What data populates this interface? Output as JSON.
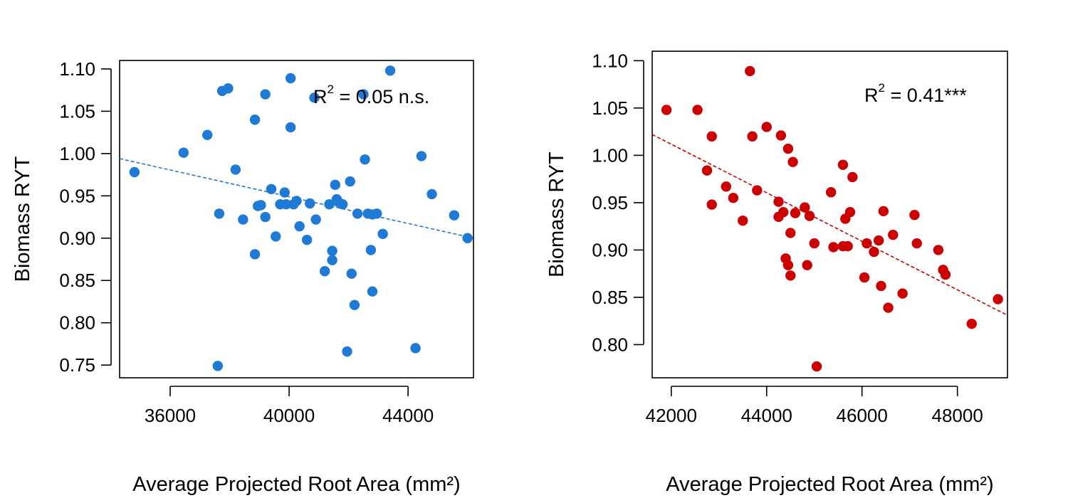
{
  "chart_data": [
    {
      "type": "scatter",
      "title": "",
      "xlabel": "Average Projected Root Area (mm²)",
      "ylabel": "Biomass RYT",
      "xlim": [
        34300,
        46200
      ],
      "ylim": [
        0.735,
        1.11
      ],
      "xticks": [
        36000,
        40000,
        44000
      ],
      "xtick_labels": [
        "36000",
        "40000",
        "44000"
      ],
      "yticks": [
        0.75,
        0.8,
        0.85,
        0.9,
        0.95,
        1.0,
        1.05,
        1.1
      ],
      "ytick_labels": [
        "0.75",
        "0.80",
        "0.85",
        "0.90",
        "0.95",
        "1.00",
        "1.05",
        "1.10"
      ],
      "color": "#1f7ad6",
      "annotation": {
        "base": "R",
        "sup": "2",
        "rest": " = 0.05 n.s."
      },
      "trend": {
        "x": [
          34300,
          46200
        ],
        "y": [
          0.994,
          0.9
        ]
      },
      "points": [
        [
          34800,
          0.978
        ],
        [
          36450,
          1.001
        ],
        [
          37250,
          1.022
        ],
        [
          37600,
          0.749
        ],
        [
          37650,
          0.929
        ],
        [
          37750,
          1.074
        ],
        [
          37950,
          1.077
        ],
        [
          38200,
          0.981
        ],
        [
          38450,
          0.922
        ],
        [
          38850,
          0.881
        ],
        [
          38850,
          1.04
        ],
        [
          38950,
          0.938
        ],
        [
          39050,
          0.939
        ],
        [
          39200,
          1.07
        ],
        [
          39200,
          0.925
        ],
        [
          39400,
          0.958
        ],
        [
          39550,
          0.902
        ],
        [
          39700,
          0.94
        ],
        [
          39850,
          0.954
        ],
        [
          39900,
          0.94
        ],
        [
          40050,
          1.089
        ],
        [
          40050,
          1.031
        ],
        [
          40150,
          0.94
        ],
        [
          40250,
          0.944
        ],
        [
          40350,
          0.914
        ],
        [
          40600,
          0.898
        ],
        [
          40700,
          0.941
        ],
        [
          40850,
          1.066
        ],
        [
          40900,
          0.922
        ],
        [
          41200,
          0.861
        ],
        [
          41350,
          0.94
        ],
        [
          41450,
          0.885
        ],
        [
          41450,
          0.874
        ],
        [
          41550,
          0.963
        ],
        [
          41600,
          0.946
        ],
        [
          41650,
          0.943
        ],
        [
          41800,
          0.94
        ],
        [
          41950,
          0.766
        ],
        [
          42050,
          0.967
        ],
        [
          42100,
          0.858
        ],
        [
          42200,
          0.821
        ],
        [
          42300,
          0.929
        ],
        [
          42500,
          1.07
        ],
        [
          42550,
          0.993
        ],
        [
          42650,
          0.929
        ],
        [
          42750,
          0.886
        ],
        [
          42800,
          0.928
        ],
        [
          42800,
          0.837
        ],
        [
          42950,
          0.929
        ],
        [
          43150,
          0.905
        ],
        [
          43400,
          1.098
        ],
        [
          44250,
          0.77
        ],
        [
          44450,
          0.997
        ],
        [
          44800,
          0.952
        ],
        [
          45550,
          0.927
        ],
        [
          46000,
          0.9
        ]
      ]
    },
    {
      "type": "scatter",
      "title": "",
      "xlabel": "Average Projected Root Area (mm²)",
      "ylabel": "Biomass RYT",
      "xlim": [
        41600,
        49050
      ],
      "ylim": [
        0.765,
        1.11
      ],
      "xticks": [
        42000,
        44000,
        46000,
        48000
      ],
      "xtick_labels": [
        "42000",
        "44000",
        "46000",
        "48000"
      ],
      "yticks": [
        0.8,
        0.85,
        0.9,
        0.95,
        1.0,
        1.05,
        1.1
      ],
      "ytick_labels": [
        "0.80",
        "0.85",
        "0.90",
        "0.95",
        "1.00",
        "1.05",
        "1.10"
      ],
      "color": "#cc0000",
      "annotation": {
        "base": "R",
        "sup": "2",
        "rest": " = 0.41***"
      },
      "trend": {
        "x": [
          41600,
          49050
        ],
        "y": [
          1.022,
          0.831
        ]
      },
      "points": [
        [
          41900,
          1.048
        ],
        [
          42550,
          1.048
        ],
        [
          42750,
          0.984
        ],
        [
          42850,
          1.02
        ],
        [
          42850,
          0.948
        ],
        [
          43150,
          0.967
        ],
        [
          43300,
          0.955
        ],
        [
          43500,
          0.931
        ],
        [
          43650,
          1.089
        ],
        [
          43700,
          1.02
        ],
        [
          43800,
          0.963
        ],
        [
          44000,
          1.03
        ],
        [
          44250,
          0.935
        ],
        [
          44250,
          0.951
        ],
        [
          44300,
          1.021
        ],
        [
          44350,
          0.94
        ],
        [
          44400,
          0.891
        ],
        [
          44450,
          0.884
        ],
        [
          44450,
          1.007
        ],
        [
          44500,
          0.918
        ],
        [
          44500,
          0.873
        ],
        [
          44550,
          0.993
        ],
        [
          44600,
          0.939
        ],
        [
          44800,
          0.945
        ],
        [
          44850,
          0.884
        ],
        [
          44900,
          0.936
        ],
        [
          45000,
          0.907
        ],
        [
          45050,
          0.777
        ],
        [
          45350,
          0.961
        ],
        [
          45400,
          0.903
        ],
        [
          45600,
          0.99
        ],
        [
          45600,
          0.904
        ],
        [
          45650,
          0.933
        ],
        [
          45700,
          0.904
        ],
        [
          45750,
          0.94
        ],
        [
          45800,
          0.977
        ],
        [
          46050,
          0.871
        ],
        [
          46100,
          0.907
        ],
        [
          46250,
          0.898
        ],
        [
          46350,
          0.91
        ],
        [
          46400,
          0.862
        ],
        [
          46450,
          0.941
        ],
        [
          46550,
          0.839
        ],
        [
          46650,
          0.916
        ],
        [
          46850,
          0.854
        ],
        [
          47100,
          0.937
        ],
        [
          47150,
          0.907
        ],
        [
          47600,
          0.9
        ],
        [
          47700,
          0.879
        ],
        [
          47750,
          0.874
        ],
        [
          48300,
          0.822
        ],
        [
          48850,
          0.848
        ]
      ]
    }
  ]
}
